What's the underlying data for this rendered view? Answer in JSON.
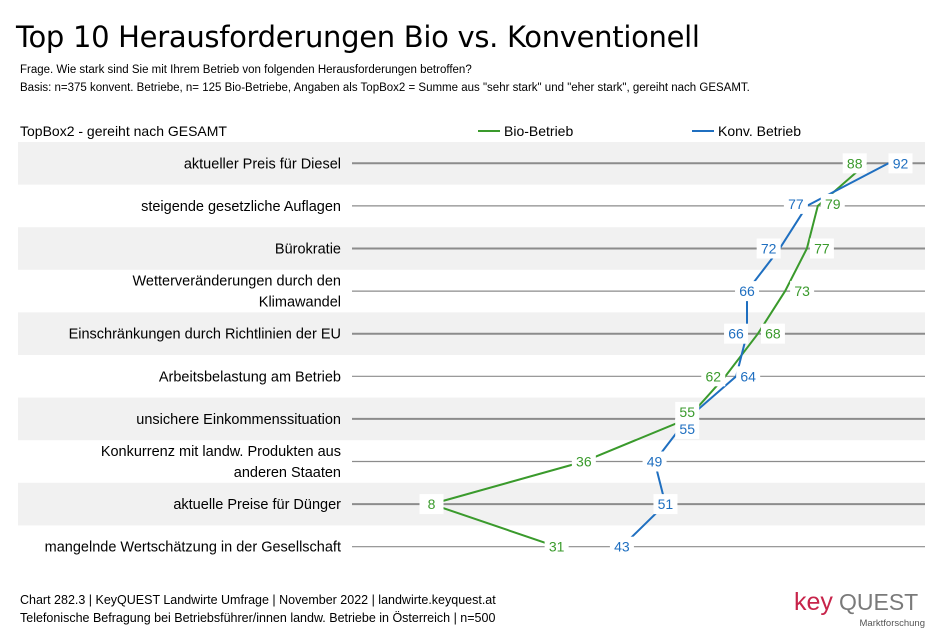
{
  "title": "Top 10 Herausforderungen Bio vs. Konventionell",
  "question": "Frage. Wie stark sind Sie mit Ihrem Betrieb von folgenden Herausforderungen betroffen?",
  "basis": "Basis: n=375 konvent. Betriebe, n= 125 Bio-Betriebe, Angaben als TopBox2 = Summe aus \"sehr stark\" und \"eher stark\", gereiht nach GESAMT.",
  "chart_header": "TopBox2 - gereiht nach GESAMT",
  "footer_line1": "Chart 282.3 | KeyQUEST Landwirte Umfrage | November 2022 | landwirte.keyquest.at",
  "footer_line2": "Telefonische Befragung bei Betriebsführer/innen landw. Betriebe in Österreich | n=500",
  "logo": {
    "key": "key",
    "quest": "QUEST",
    "sub": "Marktforschung"
  },
  "colors": {
    "bio": "#3a9a2c",
    "konv": "#1f6fc0",
    "band": "#f1f1f1",
    "line": "#8c8c8c",
    "brand_red": "#c7244a",
    "brand_gray": "#7a7a7a"
  },
  "chart_data": {
    "type": "line",
    "title": "Top 10 Herausforderungen Bio vs. Konventionell",
    "categories": [
      "aktueller Preis für Diesel",
      "steigende gesetzliche Auflagen",
      "Bürokratie",
      "Wetterveränderungen durch den Klimawandel",
      "Einschränkungen durch Richtlinien der EU",
      "Arbeitsbelastung am Betrieb",
      "unsichere Einkommenssituation",
      "Konkurrenz mit landw. Produkten aus anderen Staaten",
      "aktuelle Preise für Dünger",
      "mangelnde Wertschätzung in der Gesellschaft"
    ],
    "category_lines": [
      [
        "aktueller Preis für Diesel"
      ],
      [
        "steigende gesetzliche Auflagen"
      ],
      [
        "Bürokratie"
      ],
      [
        "Wetterveränderungen durch den",
        "Klimawandel"
      ],
      [
        "Einschränkungen durch Richtlinien der EU"
      ],
      [
        "Arbeitsbelastung am Betrieb"
      ],
      [
        "unsichere Einkommenssituation"
      ],
      [
        "Konkurrenz mit landw. Produkten aus",
        "anderen Staaten"
      ],
      [
        "aktuelle Preise für Dünger"
      ],
      [
        "mangelnde Wertschätzung in der Gesellschaft"
      ]
    ],
    "series": [
      {
        "name": "Bio-Betrieb",
        "color": "#3a9a2c",
        "values": [
          88,
          79,
          77,
          73,
          68,
          62,
          55,
          36,
          8,
          31
        ]
      },
      {
        "name": "Konv. Betrieb",
        "color": "#1f6fc0",
        "values": [
          92,
          77,
          72,
          66,
          66,
          64,
          55,
          49,
          51,
          43
        ]
      }
    ],
    "xlim": [
      0,
      100
    ],
    "legend_position": "top-right"
  }
}
